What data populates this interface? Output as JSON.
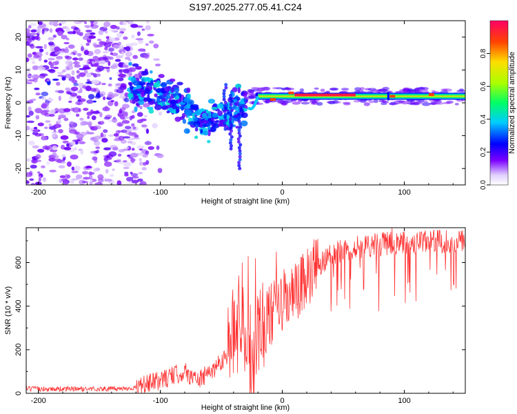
{
  "title": "S197.2025.277.05.41.C24",
  "chart_data": [
    {
      "type": "heatmap",
      "name": "spectrogram",
      "xlabel": "Height of straight line (km)",
      "ylabel": "Frequency (Hz)",
      "xlim": [
        -210,
        150
      ],
      "ylim": [
        -25,
        25
      ],
      "xticks": [
        -200,
        -100,
        0,
        100
      ],
      "yticks": [
        -20,
        -10,
        0,
        10,
        20
      ],
      "colorbar": {
        "label": "Normalized spectral amplitude",
        "range": [
          0,
          1
        ],
        "ticks": [
          "0.0",
          "0.2",
          "0.4",
          "0.6",
          "0.8"
        ]
      },
      "features": [
        {
          "desc": "diffuse noise",
          "x_range": [
            -210,
            -110
          ],
          "freq_range": [
            -25,
            25
          ],
          "amplitude": 0.15
        },
        {
          "desc": "descending ridge",
          "x_points": [
            -125,
            -100,
            -80,
            -65,
            -45,
            -30
          ],
          "freq_points": [
            5,
            3,
            -2,
            -6,
            -3,
            0
          ],
          "amplitude": 0.3
        },
        {
          "desc": "stable carrier",
          "x_range": [
            -30,
            150
          ],
          "freq": 2,
          "amplitude": 0.7
        },
        {
          "desc": "peak segment",
          "x_range": [
            10,
            60
          ],
          "freq": 2.4,
          "amplitude": 0.95
        }
      ]
    },
    {
      "type": "line",
      "name": "snr",
      "xlabel": "Height of straight line (km)",
      "ylabel": "SNR (10 * v/v)",
      "xlim": [
        -210,
        150
      ],
      "ylim": [
        0,
        760
      ],
      "xticks": [
        -200,
        -100,
        0,
        100
      ],
      "yticks": [
        0,
        200,
        400,
        600
      ],
      "color": "#ff3333",
      "trend": {
        "x": [
          -210,
          -140,
          -120,
          -100,
          -80,
          -70,
          -60,
          -45,
          -35,
          -30,
          -25,
          -20,
          -10,
          0,
          10,
          20,
          30,
          40,
          60,
          80,
          100,
          120,
          150
        ],
        "y": [
          20,
          20,
          25,
          60,
          100,
          60,
          90,
          180,
          350,
          300,
          150,
          300,
          350,
          420,
          450,
          520,
          590,
          640,
          670,
          685,
          690,
          695,
          700
        ]
      },
      "spikes": [
        {
          "x": -33,
          "y": 600
        },
        {
          "x": -28,
          "y": 630
        },
        {
          "x": -22,
          "y": 620
        },
        {
          "x": -5,
          "y": 650
        },
        {
          "x": 90,
          "y": 760
        }
      ]
    }
  ]
}
